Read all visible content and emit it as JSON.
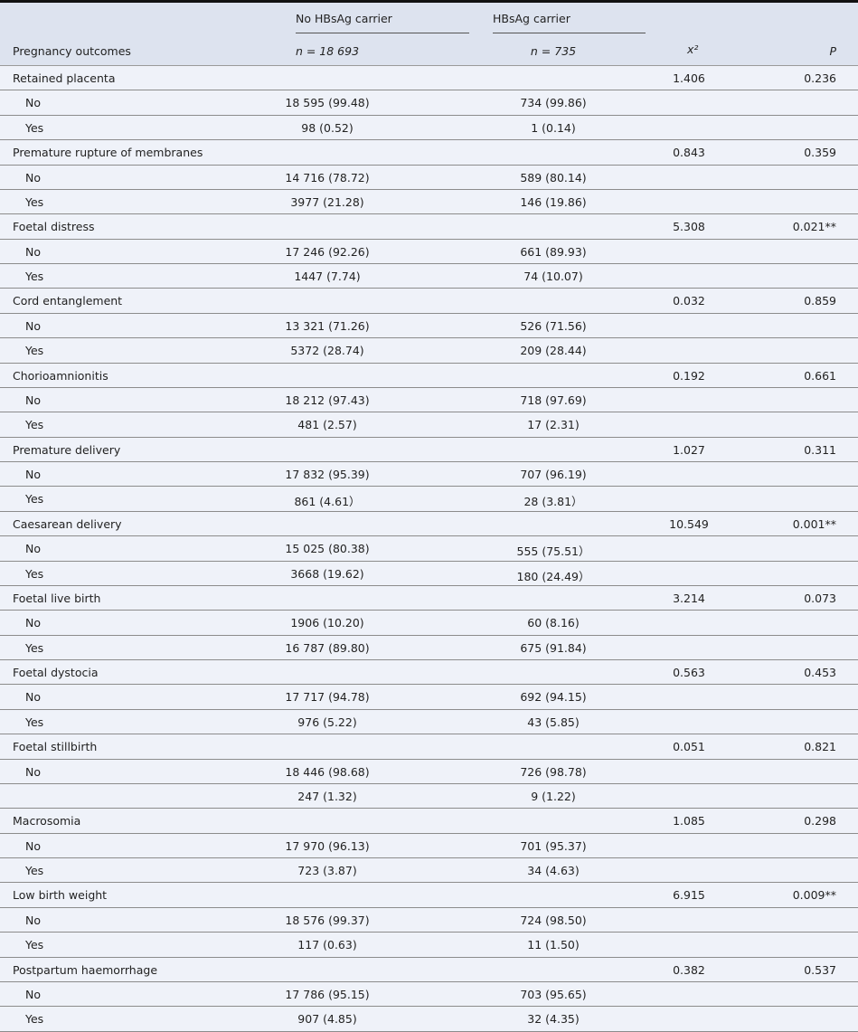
{
  "header": {
    "group1": "No HBsAg carrier",
    "group2": "HBsAg carrier",
    "col_outcome": "Pregnancy outcomes",
    "n1": "n = 18 693",
    "n2": "n = 735",
    "chi": "x²",
    "p": "P"
  },
  "groups": [
    {
      "name": "Retained placenta",
      "chi": "1.406",
      "p": "0.236",
      "rows": [
        [
          "No",
          "18 595 (99.48)",
          "734 (99.86)"
        ],
        [
          "Yes",
          "98 (0.52)",
          "1 (0.14)"
        ]
      ]
    },
    {
      "name": "Premature rupture of membranes",
      "chi": "0.843",
      "p": "0.359",
      "rows": [
        [
          "No",
          "14 716 (78.72)",
          "589 (80.14)"
        ],
        [
          "Yes",
          "3977 (21.28)",
          "146 (19.86)"
        ]
      ]
    },
    {
      "name": "Foetal distress",
      "chi": "5.308",
      "p": "0.021**",
      "rows": [
        [
          "No",
          "17 246 (92.26)",
          "661 (89.93)"
        ],
        [
          "Yes",
          "1447 (7.74)",
          "74 (10.07)"
        ]
      ]
    },
    {
      "name": "Cord entanglement",
      "chi": "0.032",
      "p": "0.859",
      "rows": [
        [
          "No",
          "13 321 (71.26)",
          "526 (71.56)"
        ],
        [
          "Yes",
          "5372 (28.74)",
          "209 (28.44)"
        ]
      ]
    },
    {
      "name": "Chorioamnionitis",
      "chi": "0.192",
      "p": "0.661",
      "rows": [
        [
          "No",
          "18 212 (97.43)",
          "718 (97.69)"
        ],
        [
          "Yes",
          "481 (2.57)",
          "17 (2.31)"
        ]
      ]
    },
    {
      "name": "Premature delivery",
      "chi": "1.027",
      "p": "0.311",
      "rows": [
        [
          "No",
          "17 832 (95.39)",
          "707 (96.19)"
        ],
        [
          "Yes",
          "861 (4.61）",
          "28 (3.81）"
        ]
      ]
    },
    {
      "name": "Caesarean delivery",
      "chi": "10.549",
      "p": "0.001**",
      "rows": [
        [
          "No",
          "15 025 (80.38)",
          "555 (75.51）"
        ],
        [
          "Yes",
          "3668 (19.62)",
          "180 (24.49）"
        ]
      ]
    },
    {
      "name": "Foetal live birth",
      "chi": "3.214",
      "p": "0.073",
      "rows": [
        [
          "No",
          "1906 (10.20)",
          "60 (8.16)"
        ],
        [
          "Yes",
          "16 787 (89.80)",
          "675 (91.84)"
        ]
      ]
    },
    {
      "name": "Foetal dystocia",
      "chi": "0.563",
      "p": "0.453",
      "rows": [
        [
          "No",
          "17 717 (94.78)",
          "692 (94.15)"
        ],
        [
          "Yes",
          "976 (5.22)",
          "43 (5.85)"
        ]
      ]
    },
    {
      "name": "Foetal stillbirth",
      "chi": "0.051",
      "p": "0.821",
      "rows": [
        [
          "No",
          "18 446 (98.68)",
          "726 (98.78)"
        ],
        [
          "",
          "247 (1.32)",
          "9 (1.22)"
        ]
      ]
    },
    {
      "name": "Macrosomia",
      "chi": "1.085",
      "p": "0.298",
      "rows": [
        [
          "No",
          "17 970 (96.13)",
          "701 (95.37)"
        ],
        [
          "Yes",
          "723 (3.87)",
          "34 (4.63)"
        ]
      ]
    },
    {
      "name": "Low birth weight",
      "chi": "6.915",
      "p": "0.009**",
      "rows": [
        [
          "No",
          "18 576 (99.37)",
          "724 (98.50)"
        ],
        [
          "Yes",
          "117 (0.63)",
          "11 (1.50)"
        ]
      ]
    },
    {
      "name": "Postpartum haemorrhage",
      "chi": "0.382",
      "p": "0.537",
      "rows": [
        [
          "No",
          "17 786 (95.15)",
          "703 (95.65)"
        ],
        [
          "Yes",
          "907 (4.85)",
          "32 (4.35)"
        ]
      ]
    }
  ]
}
